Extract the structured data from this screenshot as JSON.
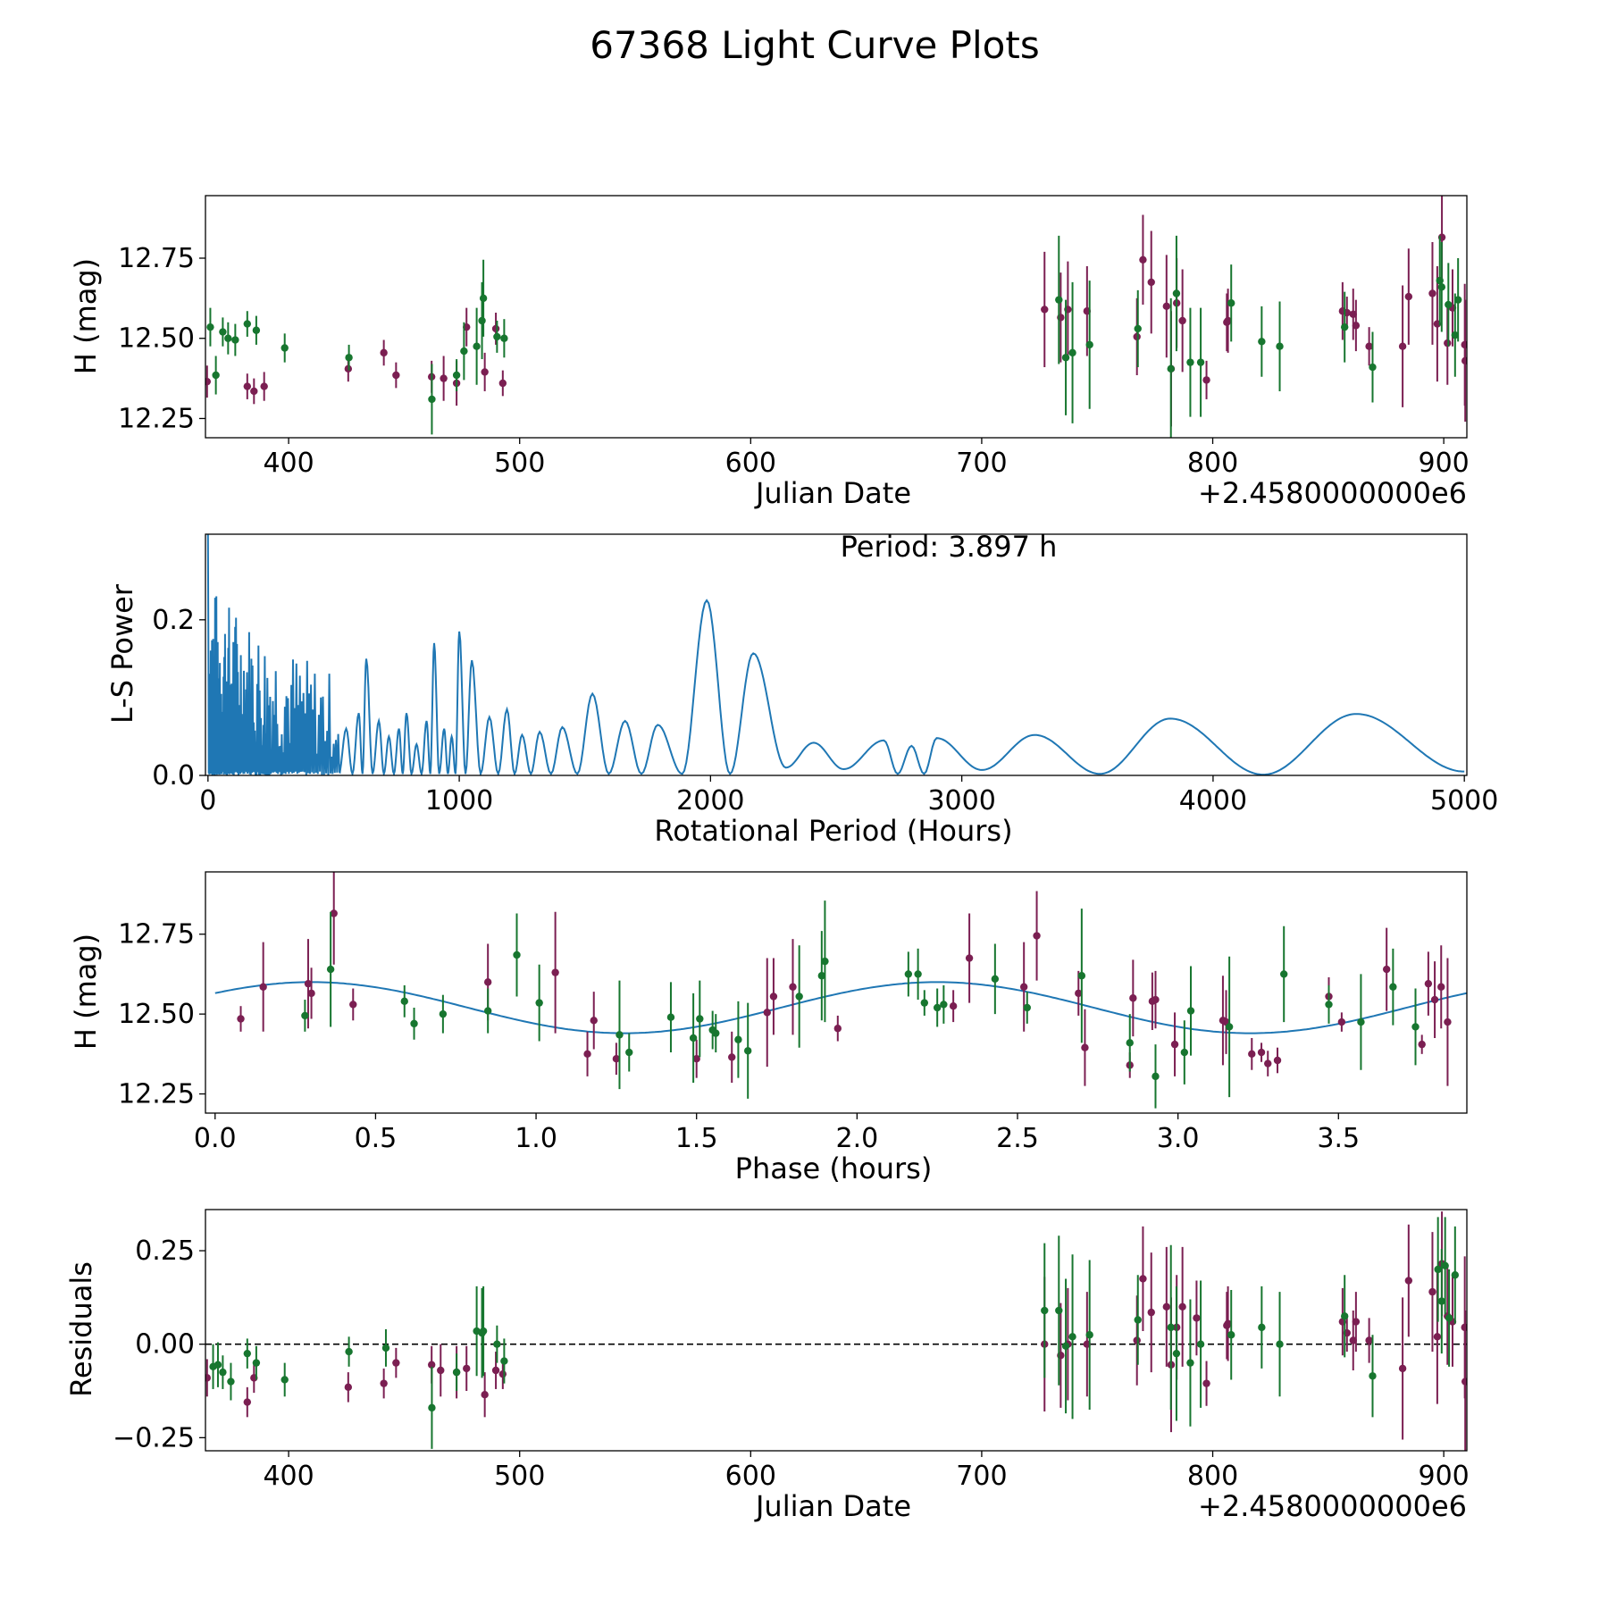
{
  "figure": {
    "title": "67368 Light Curve Plots"
  },
  "colors": {
    "magenta": "#7b1f52",
    "green": "#17762f",
    "line": "#1f77b4",
    "zero_line": "#000000"
  },
  "chart_data": [
    {
      "id": "light-curve",
      "type": "scatter",
      "title": "",
      "xlabel": "Julian Date",
      "ylabel": "H (mag)",
      "offset_text": "+2.4580000000e6",
      "xlim": [
        364,
        910
      ],
      "ylim": [
        12.19,
        12.945
      ],
      "xticks": [
        400,
        500,
        600,
        700,
        800,
        900
      ],
      "xtick_labels": [
        "400",
        "500",
        "600",
        "700",
        "800",
        "900"
      ],
      "yticks": [
        12.25,
        12.5,
        12.75
      ],
      "ytick_labels": [
        "12.25",
        "12.50",
        "12.75"
      ],
      "series": [
        {
          "name": "magenta",
          "color": "#7b1f52",
          "x": [
            364.7,
            382.1,
            385.0,
            389.4,
            425.8,
            441.2,
            446.5,
            461.9,
            467.1,
            472.7,
            477.0,
            484.9,
            489.7,
            492.7,
            727.2,
            734.2,
            737.3,
            745.6,
            767.2,
            769.8,
            773.4,
            780.0,
            782.0,
            784.4,
            786.9,
            797.3,
            806.1,
            806.6,
            856.2,
            858.1,
            860.8,
            862.0,
            867.7,
            882.2,
            884.8,
            895.1,
            897.2,
            899.2,
            901.6,
            903.8,
            909.1,
            909.3
          ],
          "y": [
            12.365,
            12.35,
            12.335,
            12.35,
            12.405,
            12.455,
            12.385,
            12.38,
            12.375,
            12.36,
            12.535,
            12.395,
            12.53,
            12.36,
            12.59,
            12.565,
            12.59,
            12.585,
            12.505,
            12.745,
            12.675,
            12.6,
            12.405,
            12.61,
            12.555,
            12.37,
            12.55,
            12.555,
            12.585,
            12.58,
            12.575,
            12.54,
            12.475,
            12.475,
            12.63,
            12.64,
            12.545,
            12.815,
            12.485,
            12.595,
            12.48,
            12.43
          ],
          "yerr": [
            0.05,
            0.04,
            0.04,
            0.045,
            0.04,
            0.04,
            0.04,
            0.05,
            0.07,
            0.07,
            0.06,
            0.06,
            0.05,
            0.04,
            0.18,
            0.14,
            0.15,
            0.14,
            0.12,
            0.14,
            0.16,
            0.16,
            0.18,
            0.14,
            0.16,
            0.06,
            0.09,
            0.1,
            0.09,
            0.05,
            0.08,
            0.08,
            0.06,
            0.19,
            0.15,
            0.16,
            0.18,
            0.14,
            0.13,
            0.12,
            0.19,
            0.19
          ]
        },
        {
          "name": "green",
          "color": "#17762f",
          "x": [
            366.1,
            368.5,
            371.5,
            373.8,
            376.9,
            382.1,
            386.0,
            398.3,
            426.1,
            462.0,
            472.7,
            475.9,
            481.4,
            483.7,
            484.3,
            490.2,
            493.3,
            733.4,
            736.4,
            739.3,
            746.7,
            767.6,
            781.9,
            784.3,
            790.3,
            794.8,
            808.0,
            821.2,
            829.0,
            857.1,
            869.2,
            898.3,
            899.1,
            902.0,
            904.9,
            906.2
          ],
          "y": [
            12.535,
            12.385,
            12.52,
            12.5,
            12.495,
            12.545,
            12.525,
            12.47,
            12.44,
            12.31,
            12.385,
            12.46,
            12.475,
            12.555,
            12.625,
            12.505,
            12.5,
            12.62,
            12.44,
            12.455,
            12.48,
            12.53,
            12.405,
            12.64,
            12.425,
            12.425,
            12.61,
            12.49,
            12.475,
            12.535,
            12.41,
            12.68,
            12.66,
            12.605,
            12.51,
            12.62
          ],
          "yerr": [
            0.06,
            0.06,
            0.045,
            0.05,
            0.05,
            0.04,
            0.045,
            0.045,
            0.04,
            0.11,
            0.05,
            0.09,
            0.12,
            0.12,
            0.12,
            0.05,
            0.06,
            0.2,
            0.18,
            0.22,
            0.2,
            0.12,
            0.22,
            0.18,
            0.17,
            0.17,
            0.12,
            0.11,
            0.14,
            0.11,
            0.11,
            0.14,
            0.14,
            0.13,
            0.13,
            0.13
          ]
        }
      ]
    },
    {
      "id": "periodogram",
      "type": "line",
      "title": "",
      "xlabel": "Rotational Period (Hours)",
      "ylabel": "L-S Power",
      "annotation": "Period: 3.897 h",
      "xlim": [
        -10,
        5010
      ],
      "ylim": [
        0,
        0.31
      ],
      "xticks": [
        0,
        1000,
        2000,
        3000,
        4000,
        5000
      ],
      "xtick_labels": [
        "0",
        "1000",
        "2000",
        "3000",
        "4000",
        "5000"
      ],
      "yticks": [
        0,
        0.2
      ],
      "ytick_labels": [
        "0.0",
        "0.2"
      ],
      "color": "#1f77b4",
      "peaks": [
        {
          "x": 550,
          "y": 0.06
        },
        {
          "x": 600,
          "y": 0.08
        },
        {
          "x": 630,
          "y": 0.15
        },
        {
          "x": 680,
          "y": 0.07
        },
        {
          "x": 720,
          "y": 0.05
        },
        {
          "x": 760,
          "y": 0.06
        },
        {
          "x": 790,
          "y": 0.08
        },
        {
          "x": 830,
          "y": 0.04
        },
        {
          "x": 870,
          "y": 0.07
        },
        {
          "x": 900,
          "y": 0.17
        },
        {
          "x": 940,
          "y": 0.06
        },
        {
          "x": 970,
          "y": 0.05
        },
        {
          "x": 1000,
          "y": 0.185
        },
        {
          "x": 1050,
          "y": 0.148
        },
        {
          "x": 1120,
          "y": 0.075
        },
        {
          "x": 1190,
          "y": 0.085
        },
        {
          "x": 1250,
          "y": 0.052
        },
        {
          "x": 1320,
          "y": 0.056
        },
        {
          "x": 1410,
          "y": 0.062
        },
        {
          "x": 1530,
          "y": 0.105
        },
        {
          "x": 1660,
          "y": 0.07
        },
        {
          "x": 1790,
          "y": 0.065
        },
        {
          "x": 1985,
          "y": 0.225
        },
        {
          "x": 2170,
          "y": 0.157
        },
        {
          "x": 2410,
          "y": 0.042
        },
        {
          "x": 2690,
          "y": 0.045
        },
        {
          "x": 2900,
          "y": 0.048
        },
        {
          "x": 3290,
          "y": 0.052
        },
        {
          "x": 3830,
          "y": 0.073
        },
        {
          "x": 4570,
          "y": 0.079
        }
      ],
      "troughs": [
        {
          "x": 2300,
          "y": 0.01
        },
        {
          "x": 2530,
          "y": 0.008
        },
        {
          "x": 2800,
          "y": 0.038
        },
        {
          "x": 3080,
          "y": 0.007
        },
        {
          "x": 3550,
          "y": 0.002
        },
        {
          "x": 4200,
          "y": 0.001
        }
      ]
    },
    {
      "id": "phased-curve",
      "type": "scatter",
      "title": "",
      "xlabel": "Phase (hours)",
      "ylabel": "H (mag)",
      "xlim": [
        -0.03,
        3.9
      ],
      "ylim": [
        12.19,
        12.945
      ],
      "xticks": [
        0,
        0.5,
        1,
        1.5,
        2,
        2.5,
        3,
        3.5
      ],
      "xtick_labels": [
        "0.0",
        "0.5",
        "1.0",
        "1.5",
        "2.0",
        "2.5",
        "3.0",
        "3.5"
      ],
      "yticks": [
        12.25,
        12.5,
        12.75
      ],
      "ytick_labels": [
        "12.25",
        "12.50",
        "12.75"
      ],
      "model": {
        "type": "sinusoid",
        "mean": 12.52,
        "amplitude": 0.08,
        "period": 1.95,
        "peak_phase": 0.3,
        "color": "#1f77b4"
      },
      "series": [
        {
          "name": "magenta",
          "color": "#7b1f52",
          "x": [
            0.08,
            0.15,
            0.29,
            0.3,
            0.37,
            0.43,
            0.85,
            1.06,
            1.16,
            1.18,
            1.25,
            1.5,
            1.61,
            1.72,
            1.74,
            1.8,
            1.94,
            2.3,
            2.35,
            2.52,
            2.56,
            2.69,
            2.71,
            2.86,
            2.85,
            2.92,
            2.93,
            2.99,
            3.14,
            3.15,
            3.23,
            3.26,
            3.28,
            3.31,
            3.47,
            3.51,
            3.65,
            3.76,
            3.78,
            3.8,
            3.82,
            3.84
          ],
          "y": [
            12.485,
            12.585,
            12.595,
            12.565,
            12.815,
            12.53,
            12.6,
            12.63,
            12.375,
            12.48,
            12.36,
            12.36,
            12.365,
            12.505,
            12.555,
            12.585,
            12.455,
            12.525,
            12.675,
            12.585,
            12.745,
            12.565,
            12.395,
            12.55,
            12.34,
            12.54,
            12.545,
            12.405,
            12.48,
            12.475,
            12.375,
            12.38,
            12.345,
            12.355,
            12.555,
            12.475,
            12.64,
            12.405,
            12.595,
            12.545,
            12.585,
            12.475
          ],
          "yerr": [
            0.04,
            0.14,
            0.14,
            0.08,
            0.16,
            0.05,
            0.12,
            0.19,
            0.07,
            0.09,
            0.05,
            0.06,
            0.08,
            0.17,
            0.12,
            0.15,
            0.04,
            0.05,
            0.14,
            0.14,
            0.14,
            0.07,
            0.12,
            0.12,
            0.04,
            0.09,
            0.09,
            0.1,
            0.14,
            0.1,
            0.05,
            0.03,
            0.04,
            0.04,
            0.06,
            0.03,
            0.13,
            0.03,
            0.1,
            0.12,
            0.13,
            0.2
          ]
        },
        {
          "name": "green",
          "color": "#17762f",
          "x": [
            0.28,
            0.36,
            0.59,
            0.62,
            0.71,
            0.85,
            0.94,
            1.01,
            1.26,
            1.29,
            1.42,
            1.49,
            1.51,
            1.55,
            1.56,
            1.63,
            1.66,
            1.82,
            1.89,
            1.9,
            2.16,
            2.19,
            2.21,
            2.25,
            2.27,
            2.43,
            2.53,
            2.7,
            2.85,
            2.93,
            3.02,
            3.04,
            3.16,
            3.33,
            3.47,
            3.57,
            3.67,
            3.74
          ],
          "y": [
            12.495,
            12.64,
            12.54,
            12.47,
            12.5,
            12.51,
            12.685,
            12.535,
            12.435,
            12.38,
            12.49,
            12.425,
            12.485,
            12.45,
            12.44,
            12.42,
            12.385,
            12.555,
            12.62,
            12.665,
            12.625,
            12.625,
            12.535,
            12.52,
            12.53,
            12.61,
            12.52,
            12.62,
            12.41,
            12.305,
            12.38,
            12.51,
            12.46,
            12.625,
            12.53,
            12.475,
            12.585,
            12.46
          ],
          "yerr": [
            0.05,
            0.18,
            0.05,
            0.05,
            0.06,
            0.07,
            0.13,
            0.12,
            0.17,
            0.06,
            0.11,
            0.14,
            0.12,
            0.06,
            0.06,
            0.12,
            0.15,
            0.16,
            0.14,
            0.19,
            0.07,
            0.08,
            0.04,
            0.06,
            0.06,
            0.11,
            0.05,
            0.21,
            0.09,
            0.1,
            0.1,
            0.14,
            0.22,
            0.15,
            0.06,
            0.15,
            0.12,
            0.12
          ]
        }
      ]
    },
    {
      "id": "residuals",
      "type": "scatter",
      "title": "",
      "xlabel": "Julian Date",
      "ylabel": "Residuals",
      "offset_text": "+2.4580000000e6",
      "xlim": [
        364,
        910
      ],
      "ylim": [
        -0.285,
        0.36
      ],
      "xticks": [
        400,
        500,
        600,
        700,
        800,
        900
      ],
      "xtick_labels": [
        "400",
        "500",
        "600",
        "700",
        "800",
        "900"
      ],
      "yticks": [
        -0.25,
        0,
        0.25
      ],
      "ytick_labels": [
        "−0.25",
        "0.00",
        "0.25"
      ],
      "reference_line": 0,
      "series": [
        {
          "name": "magenta",
          "color": "#7b1f52",
          "x": [
            364.7,
            382.1,
            385.0,
            425.8,
            441.2,
            446.5,
            461.9,
            465.8,
            472.7,
            477.0,
            484.9,
            489.7,
            492.7,
            727.2,
            734.2,
            737.3,
            745.6,
            767.2,
            769.8,
            773.4,
            780.0,
            782.0,
            784.4,
            786.9,
            793.0,
            797.3,
            806.1,
            806.6,
            856.2,
            858.1,
            860.8,
            862.0,
            867.7,
            882.2,
            884.8,
            895.1,
            897.2,
            899.2,
            901.6,
            903.8,
            909.1,
            909.3
          ],
          "y": [
            -0.09,
            -0.155,
            -0.09,
            -0.115,
            -0.105,
            -0.05,
            -0.055,
            -0.07,
            -0.075,
            -0.065,
            -0.135,
            -0.07,
            -0.08,
            0.0,
            -0.03,
            0.0,
            0.0,
            0.01,
            0.175,
            0.085,
            0.1,
            -0.055,
            0.045,
            0.1,
            0.07,
            -0.105,
            0.05,
            0.055,
            0.06,
            0.03,
            0.01,
            0.06,
            0.01,
            -0.065,
            0.17,
            0.14,
            0.02,
            0.215,
            0.075,
            0.06,
            0.045,
            -0.1
          ],
          "yerr": [
            0.05,
            0.04,
            0.04,
            0.04,
            0.04,
            0.04,
            0.05,
            0.07,
            0.07,
            0.06,
            0.06,
            0.05,
            0.04,
            0.18,
            0.14,
            0.15,
            0.14,
            0.12,
            0.14,
            0.16,
            0.16,
            0.18,
            0.14,
            0.16,
            0.1,
            0.06,
            0.09,
            0.1,
            0.09,
            0.05,
            0.08,
            0.08,
            0.06,
            0.19,
            0.15,
            0.16,
            0.18,
            0.14,
            0.13,
            0.12,
            0.19,
            0.19
          ]
        },
        {
          "name": "green",
          "color": "#17762f",
          "x": [
            367.3,
            369.4,
            371.5,
            375.0,
            382.1,
            386.0,
            398.3,
            426.1,
            442.1,
            462.0,
            472.7,
            481.4,
            483.7,
            484.3,
            490.2,
            493.3,
            727.2,
            733.4,
            736.4,
            739.3,
            746.7,
            767.6,
            781.9,
            784.3,
            790.3,
            794.8,
            808.0,
            821.2,
            829.0,
            857.1,
            869.2,
            897.5,
            899.1,
            900.6,
            902.3,
            904.9
          ],
          "y": [
            -0.06,
            -0.055,
            -0.075,
            -0.1,
            -0.025,
            -0.05,
            -0.095,
            -0.02,
            -0.01,
            -0.17,
            -0.075,
            0.035,
            0.03,
            0.035,
            0.0,
            -0.045,
            0.09,
            0.09,
            -0.005,
            0.02,
            0.025,
            0.065,
            0.045,
            -0.025,
            -0.05,
            0.0,
            0.025,
            0.045,
            0.0,
            0.075,
            -0.085,
            0.2,
            0.115,
            0.21,
            0.07,
            0.185
          ],
          "yerr": [
            0.06,
            0.06,
            0.045,
            0.05,
            0.04,
            0.045,
            0.045,
            0.04,
            0.05,
            0.11,
            0.05,
            0.12,
            0.12,
            0.12,
            0.05,
            0.06,
            0.18,
            0.2,
            0.18,
            0.22,
            0.2,
            0.12,
            0.22,
            0.18,
            0.17,
            0.17,
            0.12,
            0.11,
            0.14,
            0.11,
            0.11,
            0.14,
            0.14,
            0.13,
            0.13,
            0.13
          ]
        }
      ]
    }
  ]
}
